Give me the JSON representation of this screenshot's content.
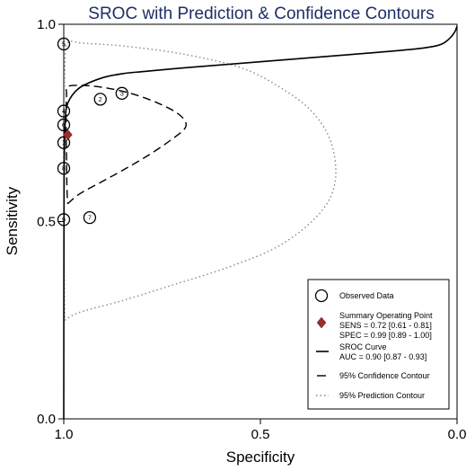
{
  "chart_data": {
    "type": "scatter",
    "title": "SROC with Prediction & Confidence Contours",
    "xlabel": "Specificity",
    "ylabel": "Sensitivity",
    "x_reversed": true,
    "xlim": [
      1.0,
      0.0
    ],
    "ylim": [
      0.0,
      1.0
    ],
    "x_ticks": [
      {
        "value": 1.0,
        "label": "1.0"
      },
      {
        "value": 0.5,
        "label": "0.5"
      },
      {
        "value": 0.0,
        "label": "0.0"
      }
    ],
    "y_ticks": [
      {
        "value": 0.0,
        "label": "0.0"
      },
      {
        "value": 0.5,
        "label": "0.5"
      },
      {
        "value": 1.0,
        "label": "1.0"
      }
    ],
    "grid": false,
    "legend_position": "bottom-right",
    "observed_data": [
      {
        "study": "5",
        "specificity": 1.0,
        "sensitivity": 0.95
      },
      {
        "study": "2",
        "specificity": 0.907,
        "sensitivity": 0.81
      },
      {
        "study": "3",
        "specificity": 0.852,
        "sensitivity": 0.825
      },
      {
        "study": "4",
        "specificity": 1.0,
        "sensitivity": 0.78
      },
      {
        "study": "6",
        "specificity": 1.0,
        "sensitivity": 0.745
      },
      {
        "study": "1",
        "specificity": 1.0,
        "sensitivity": 0.7
      },
      {
        "study": "8",
        "specificity": 1.0,
        "sensitivity": 0.635
      },
      {
        "study": "9",
        "specificity": 1.0,
        "sensitivity": 0.505
      },
      {
        "study": "7",
        "specificity": 0.934,
        "sensitivity": 0.51
      }
    ],
    "summary_point": {
      "specificity": 0.99,
      "sensitivity": 0.72
    },
    "sroc_curve": [
      [
        1.0,
        0.0
      ],
      [
        0.9995,
        0.45
      ],
      [
        0.999,
        0.62
      ],
      [
        0.998,
        0.7
      ],
      [
        0.996,
        0.76
      ],
      [
        0.993,
        0.79
      ],
      [
        0.985,
        0.81
      ],
      [
        0.97,
        0.83
      ],
      [
        0.95,
        0.845
      ],
      [
        0.9,
        0.865
      ],
      [
        0.85,
        0.875
      ],
      [
        0.8,
        0.88
      ],
      [
        0.7,
        0.889
      ],
      [
        0.6,
        0.897
      ],
      [
        0.5,
        0.905
      ],
      [
        0.4,
        0.913
      ],
      [
        0.3,
        0.921
      ],
      [
        0.2,
        0.929
      ],
      [
        0.1,
        0.938
      ],
      [
        0.05,
        0.946
      ],
      [
        0.03,
        0.955
      ],
      [
        0.015,
        0.968
      ],
      [
        0.005,
        0.982
      ],
      [
        0.0,
        0.995
      ]
    ],
    "confidence_contour": [
      [
        0.99,
        0.545
      ],
      [
        0.96,
        0.57
      ],
      [
        0.905,
        0.6
      ],
      [
        0.85,
        0.63
      ],
      [
        0.79,
        0.665
      ],
      [
        0.73,
        0.705
      ],
      [
        0.69,
        0.74
      ],
      [
        0.705,
        0.77
      ],
      [
        0.76,
        0.8
      ],
      [
        0.83,
        0.825
      ],
      [
        0.9,
        0.84
      ],
      [
        0.955,
        0.845
      ],
      [
        0.99,
        0.842
      ],
      [
        0.993,
        0.82
      ],
      [
        0.994,
        0.76
      ],
      [
        0.993,
        0.66
      ],
      [
        0.992,
        0.59
      ],
      [
        0.99,
        0.545
      ]
    ],
    "prediction_contour": [
      [
        0.997,
        0.25
      ],
      [
        0.96,
        0.27
      ],
      [
        0.85,
        0.3
      ],
      [
        0.72,
        0.34
      ],
      [
        0.58,
        0.385
      ],
      [
        0.45,
        0.44
      ],
      [
        0.35,
        0.52
      ],
      [
        0.31,
        0.6
      ],
      [
        0.32,
        0.7
      ],
      [
        0.37,
        0.78
      ],
      [
        0.45,
        0.84
      ],
      [
        0.55,
        0.89
      ],
      [
        0.7,
        0.925
      ],
      [
        0.85,
        0.945
      ],
      [
        0.95,
        0.952
      ],
      [
        0.99,
        0.953
      ],
      [
        0.997,
        0.9
      ],
      [
        0.999,
        0.7
      ],
      [
        0.999,
        0.45
      ],
      [
        0.998,
        0.3
      ],
      [
        0.997,
        0.25
      ]
    ],
    "legend": {
      "observed": "Observed Data",
      "summary_title": "Summary Operating Point",
      "summary_sens": "SENS = 0.72 [0.61 - 0.81]",
      "summary_spec": "SPEC = 0.99 [0.89 - 1.00]",
      "sroc_title": "SROC Curve",
      "sroc_auc": "AUC = 0.90 [0.87 - 0.93]",
      "confidence": "95% Confidence Contour",
      "prediction": "95% Prediction Contour"
    },
    "colors": {
      "title": "#1f2f66",
      "summary_marker": "#9b2d2d",
      "line": "#000000",
      "prediction_line": "#888888"
    }
  }
}
